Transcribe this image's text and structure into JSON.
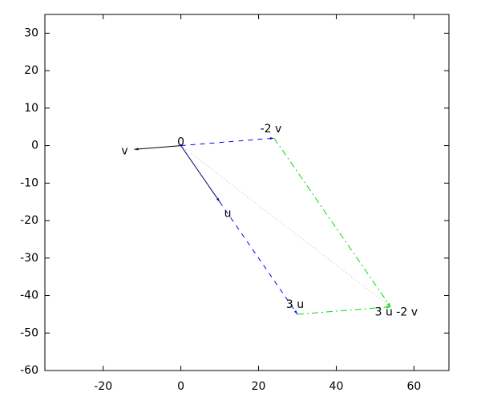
{
  "chart_data": {
    "type": "vector",
    "xlim": [
      -35,
      69
    ],
    "ylim": [
      -60,
      35
    ],
    "xticks": [
      -20,
      0,
      20,
      40,
      60
    ],
    "yticks": [
      -60,
      -50,
      -40,
      -30,
      -20,
      -10,
      0,
      10,
      20,
      30
    ],
    "points": [
      {
        "label": "0",
        "x": 0,
        "y": 0
      },
      {
        "label": "v",
        "x": -12,
        "y": -1
      },
      {
        "label": "u",
        "x": 10,
        "y": -15
      },
      {
        "label": "-2 v",
        "x": 24,
        "y": 2
      },
      {
        "label": "3 u",
        "x": 30,
        "y": -45
      },
      {
        "label": "3 u -2 v",
        "x": 54,
        "y": -43
      }
    ],
    "segments": [
      {
        "x": [
          0,
          54
        ],
        "y": [
          0,
          -43
        ],
        "color": "#bbbbbb",
        "style": "dotted"
      },
      {
        "x": [
          0,
          24
        ],
        "y": [
          0,
          2
        ],
        "color": "#0000ff",
        "style": "dashed"
      },
      {
        "x": [
          10,
          30
        ],
        "y": [
          -15,
          -45
        ],
        "color": "#0000ff",
        "style": "dashed"
      },
      {
        "x": [
          24,
          54
        ],
        "y": [
          2,
          -43
        ],
        "color": "#00dd00",
        "style": "dashdot"
      },
      {
        "x": [
          30,
          54
        ],
        "y": [
          -45,
          -43
        ],
        "color": "#00dd00",
        "style": "dashdot"
      },
      {
        "x": [
          0,
          -12
        ],
        "y": [
          0,
          -1
        ],
        "color": "#000000",
        "style": "solid"
      },
      {
        "x": [
          0,
          10
        ],
        "y": [
          0,
          -15
        ],
        "color": "#000080",
        "style": "solid"
      }
    ]
  }
}
